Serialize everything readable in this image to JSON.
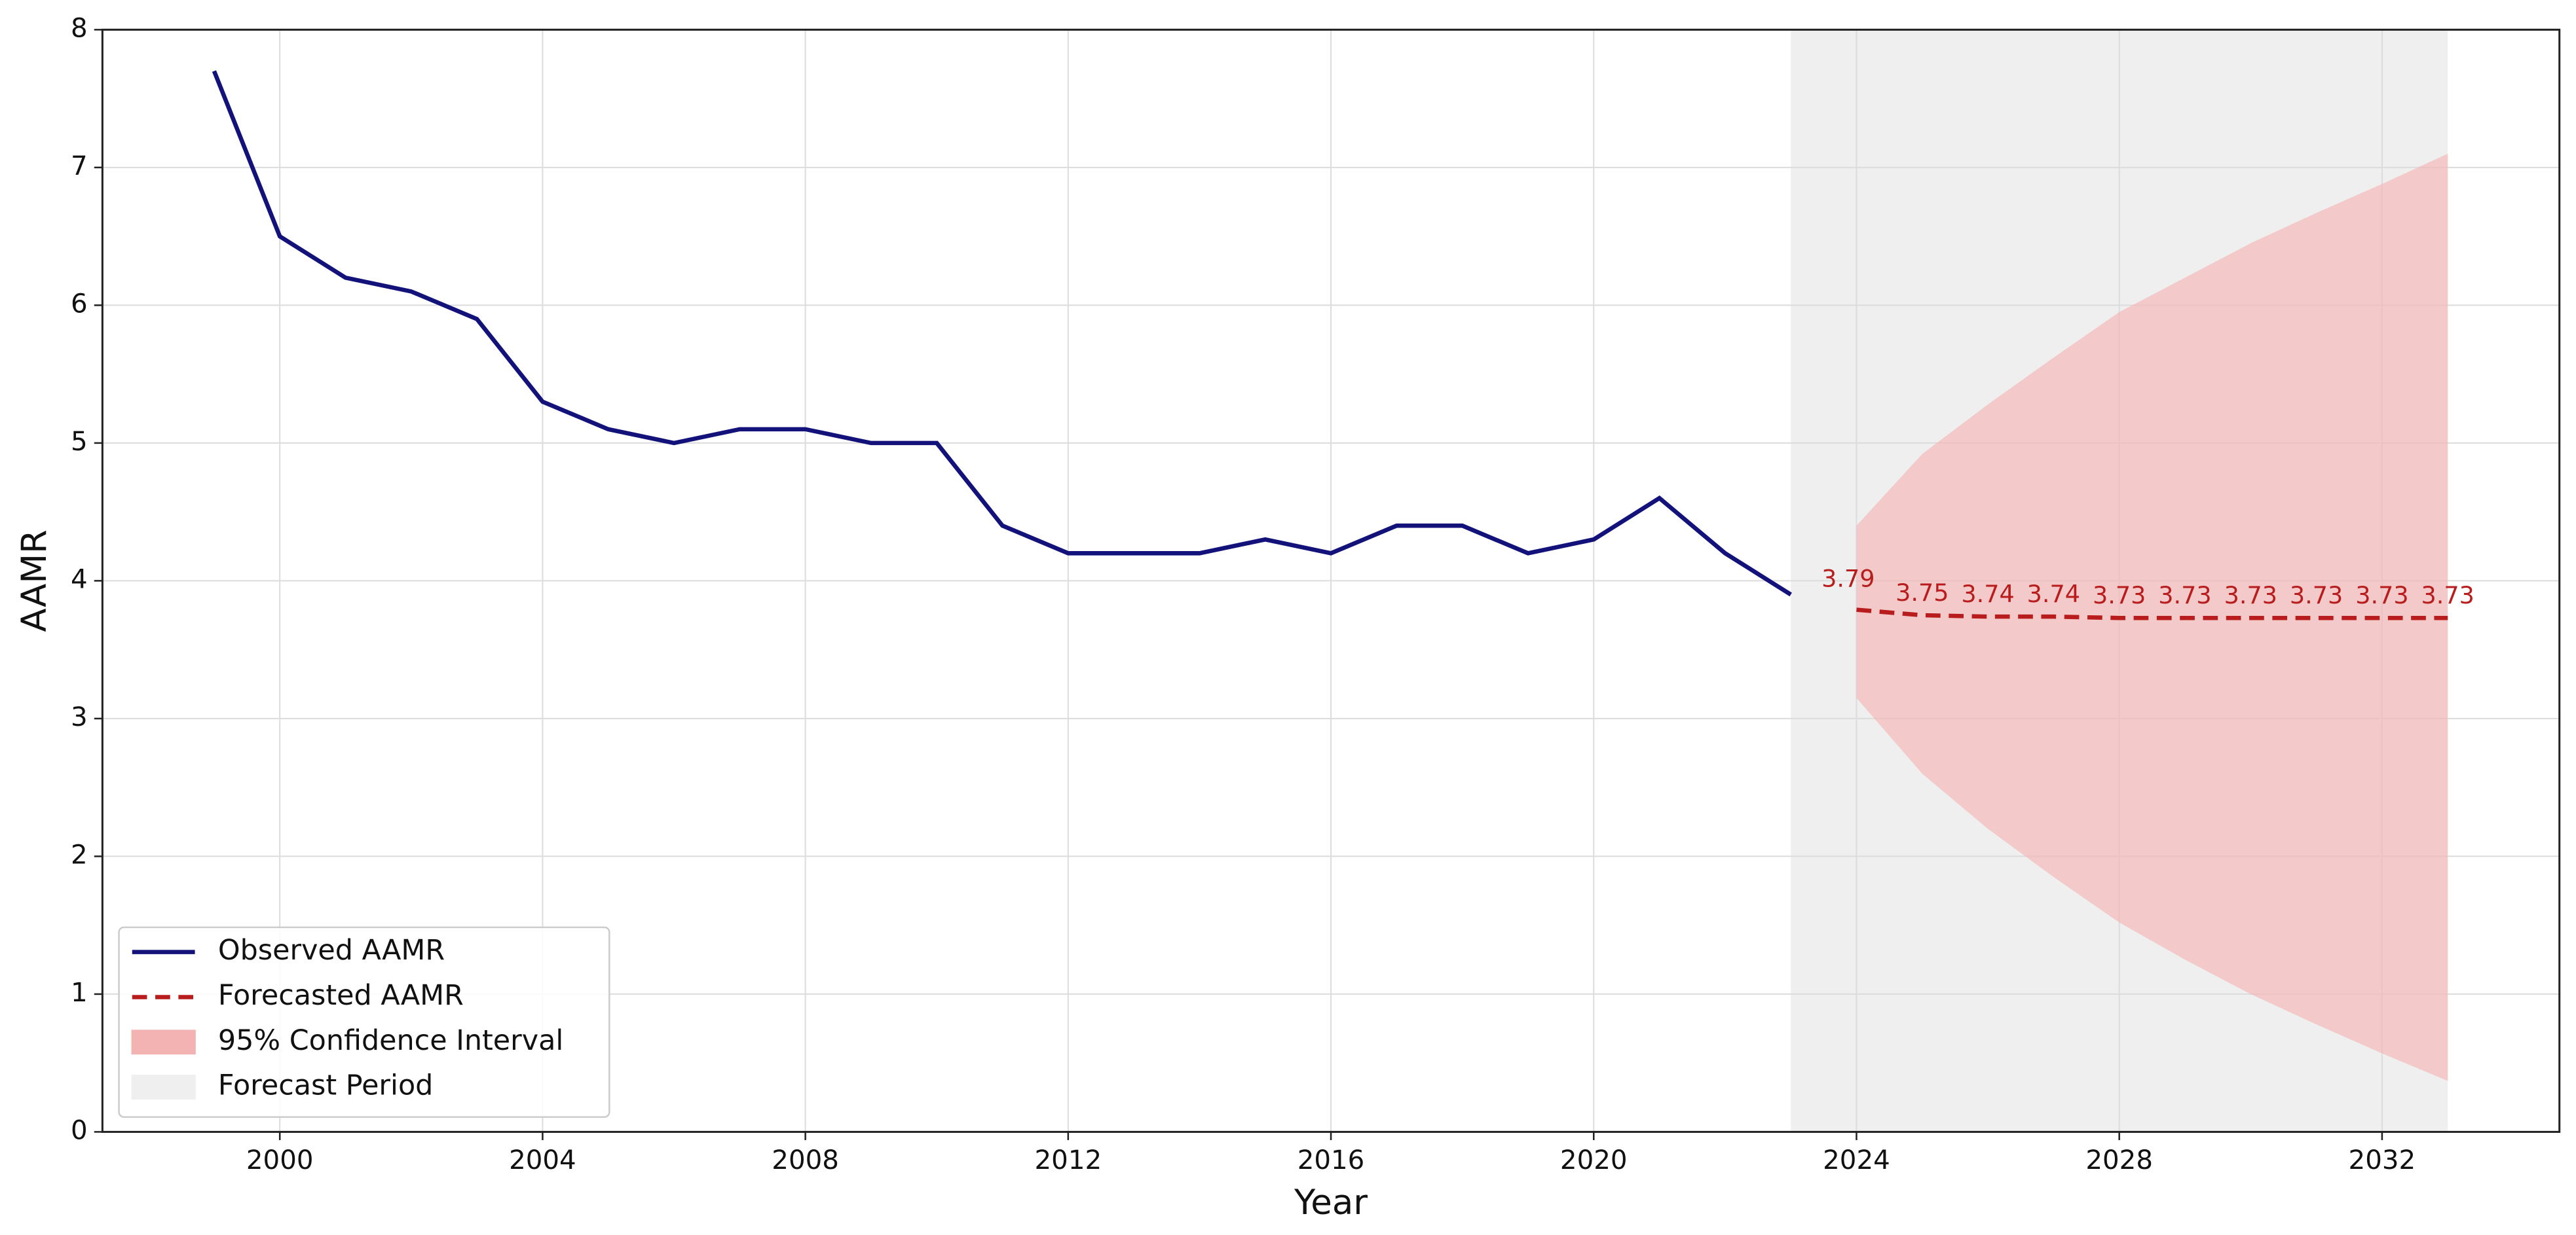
{
  "chart_data": {
    "type": "line",
    "xlabel": "Year",
    "ylabel": "AAMR",
    "series": [
      {
        "name": "Observed AAMR",
        "color": "#12127a",
        "dash": "solid",
        "x": [
          1999,
          2000,
          2001,
          2002,
          2003,
          2004,
          2005,
          2006,
          2007,
          2008,
          2009,
          2010,
          2011,
          2012,
          2013,
          2014,
          2015,
          2016,
          2017,
          2018,
          2019,
          2020,
          2021,
          2022,
          2023
        ],
        "values": [
          7.7,
          6.5,
          6.2,
          6.1,
          5.9,
          5.3,
          5.1,
          5.0,
          5.1,
          5.1,
          5.0,
          5.0,
          4.4,
          4.2,
          4.2,
          4.2,
          4.3,
          4.2,
          4.4,
          4.4,
          4.2,
          4.3,
          4.6,
          4.2,
          3.9
        ]
      },
      {
        "name": "Forecasted AAMR",
        "color": "#b81c1c",
        "dash": "dashed",
        "x": [
          2024,
          2025,
          2026,
          2027,
          2028,
          2029,
          2030,
          2031,
          2032,
          2033
        ],
        "values": [
          3.79,
          3.75,
          3.74,
          3.74,
          3.73,
          3.73,
          3.73,
          3.73,
          3.73,
          3.73
        ]
      }
    ],
    "confidence_interval": {
      "name": "95% Confidence Interval",
      "color": "#f4b3b3",
      "lower": [
        3.15,
        2.6,
        2.2,
        1.85,
        1.52,
        1.25,
        1.0,
        0.78,
        0.57,
        0.37
      ],
      "upper": [
        4.4,
        4.92,
        5.28,
        5.62,
        5.95,
        6.2,
        6.45,
        6.67,
        6.88,
        7.1
      ]
    },
    "forecast_period": {
      "name": "Forecast Period",
      "color": "#efefef",
      "start": 2023,
      "end": 2033
    },
    "xlim": [
      1997.3,
      2034.7
    ],
    "ylim": [
      0,
      8
    ],
    "xticks": [
      2000,
      2004,
      2008,
      2012,
      2016,
      2020,
      2024,
      2028,
      2032
    ],
    "yticks": [
      0,
      1,
      2,
      3,
      4,
      5,
      6,
      7,
      8
    ],
    "grid": true,
    "legend": "lower left"
  }
}
